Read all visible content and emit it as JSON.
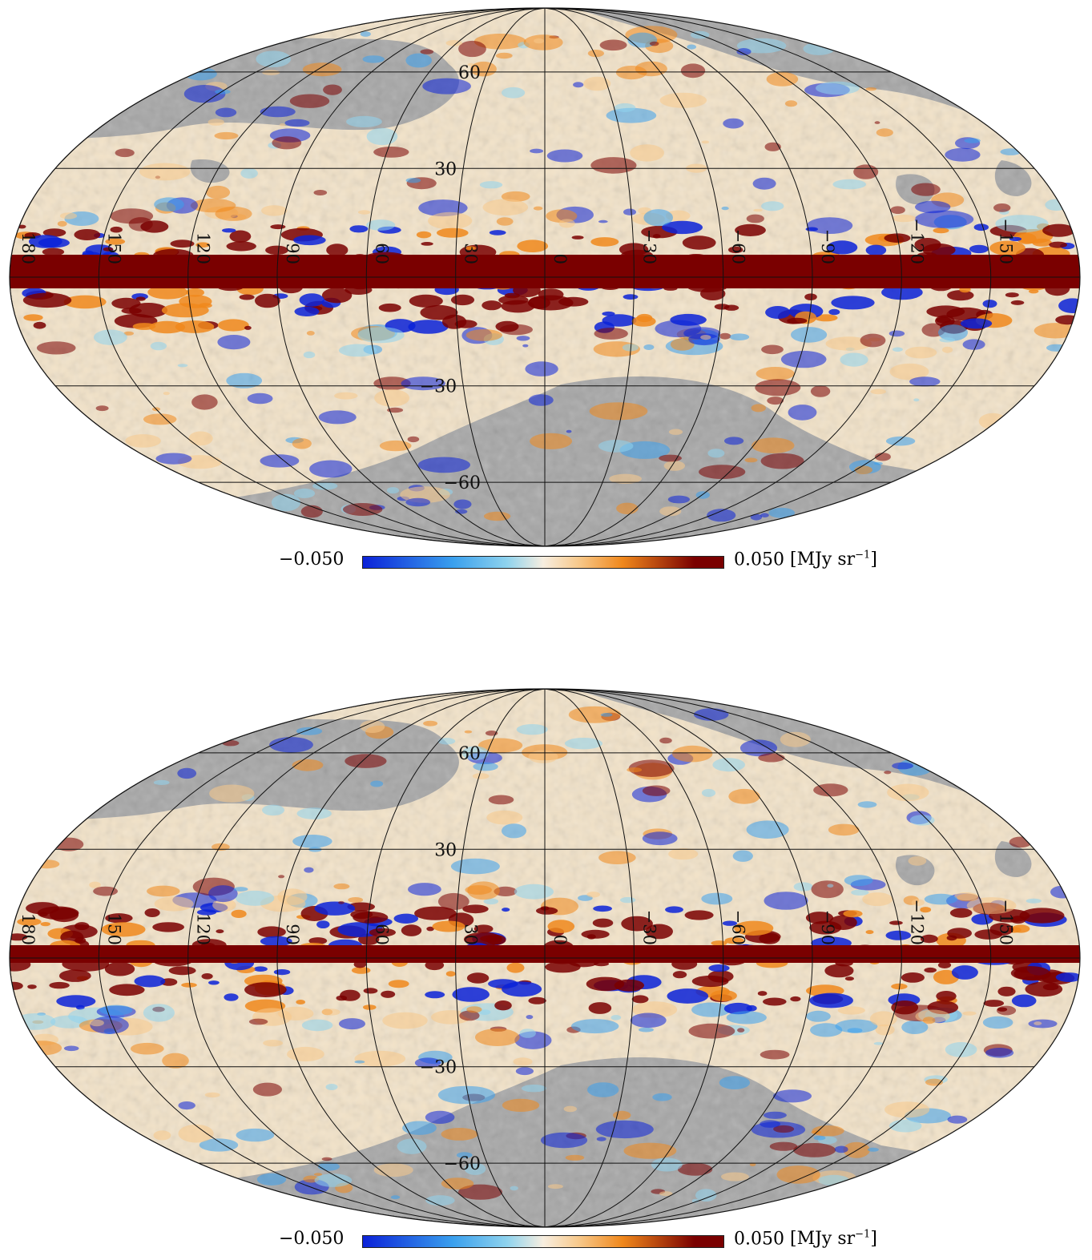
{
  "maps": [
    {
      "name": "upper-map",
      "latitude_labels": [
        "60",
        "30",
        "−30",
        "−60"
      ],
      "longitude_labels": [
        "180",
        "150",
        "120",
        "90",
        "60",
        "30",
        "0",
        "−30",
        "−60",
        "−90",
        "−120",
        "−150"
      ],
      "colorbar": {
        "min_label": "−0.050",
        "max_label": "0.050",
        "unit_open": "[MJy sr",
        "unit_exp": "−1",
        "unit_close": "]"
      }
    },
    {
      "name": "lower-map",
      "latitude_labels": [
        "60",
        "30",
        "−30",
        "−60"
      ],
      "longitude_labels": [
        "180",
        "150",
        "120",
        "90",
        "60",
        "30",
        "0",
        "−30",
        "−60",
        "−90",
        "−120",
        "−150"
      ],
      "colorbar": {
        "min_label": "−0.050",
        "max_label": "0.050",
        "unit_open": "[MJy sr",
        "unit_exp": "−1",
        "unit_close": "]"
      }
    }
  ],
  "colors": {
    "mask": "#a6a6a6",
    "background_map": "#f3e3c8",
    "neg_strong": "#0b22d8",
    "neg_mid": "#3aa0ee",
    "neg_light": "#8fd3ee",
    "neutral": "#f7eee0",
    "pos_light": "#f7c88a",
    "pos_mid": "#f0881c",
    "pos_strong": "#7a0000",
    "grid": "#111111"
  },
  "projection": "mollweide",
  "graticule_step_deg": 30
}
